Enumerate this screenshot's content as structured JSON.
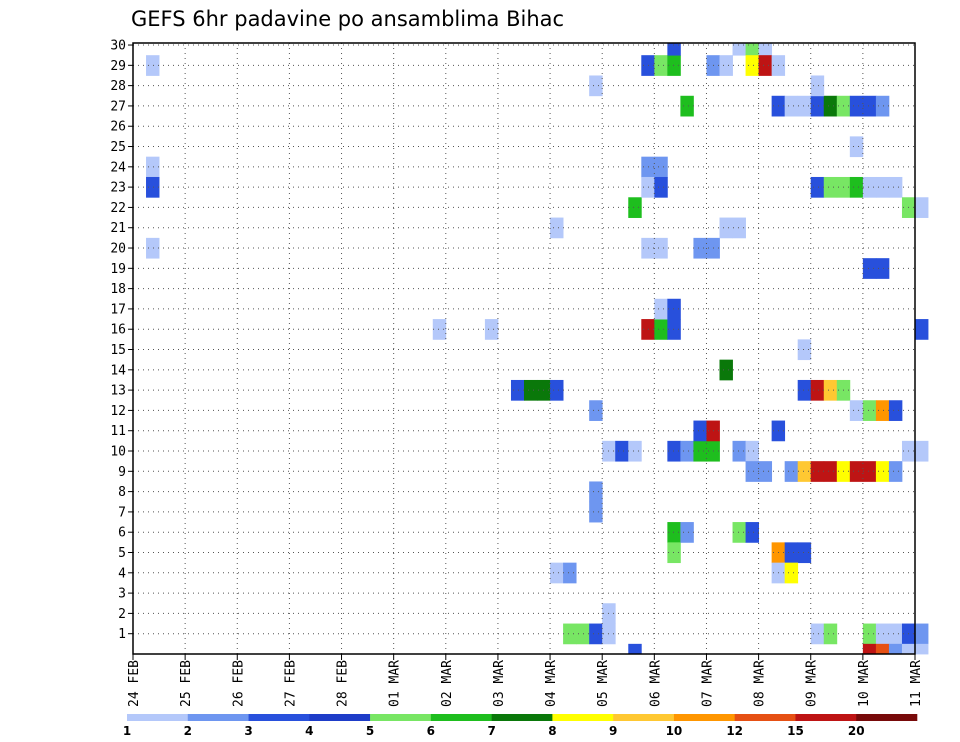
{
  "chart_data": {
    "type": "heatmap",
    "title": "GEFS 6hr padavine po ansamblima Bihac",
    "xlabel": "",
    "ylabel": "",
    "x_ticks": [
      "24 FEB",
      "25 FEB",
      "26 FEB",
      "27 FEB",
      "28 FEB",
      "01 MAR",
      "02 MAR",
      "03 MAR",
      "04 MAR",
      "05 MAR",
      "06 MAR",
      "07 MAR",
      "08 MAR",
      "09 MAR",
      "10 MAR",
      "11 MAR"
    ],
    "y_ticks": [
      "1",
      "2",
      "3",
      "4",
      "5",
      "6",
      "7",
      "8",
      "9",
      "10",
      "11",
      "12",
      "13",
      "14",
      "15",
      "16",
      "17",
      "18",
      "19",
      "20",
      "21",
      "22",
      "23",
      "24",
      "25",
      "26",
      "27",
      "28",
      "29",
      "30"
    ],
    "ylim": [
      0,
      30
    ],
    "x_steps_per_day": 4,
    "total_steps": 60,
    "grid": true,
    "legend": {
      "position": "bottom",
      "labels": [
        "1",
        "2",
        "3",
        "4",
        "5",
        "6",
        "7",
        "8",
        "9",
        "10",
        "12",
        "15",
        "20"
      ],
      "colors": [
        "#b4c8fa",
        "#6e96f0",
        "#2850dc",
        "#1e3cc8",
        "#78e664",
        "#1ebe1e",
        "#0a780a",
        "#ffff00",
        "#ffc832",
        "#ff9600",
        "#e65014",
        "#be1414",
        "#780a0a"
      ]
    },
    "cells": [
      [
        1,
        29,
        1
      ],
      [
        1,
        24,
        1
      ],
      [
        1,
        23,
        3
      ],
      [
        1,
        20,
        1
      ],
      [
        23,
        16,
        1
      ],
      [
        27,
        16,
        1
      ],
      [
        29,
        13,
        3
      ],
      [
        30,
        13,
        7
      ],
      [
        31,
        13,
        7
      ],
      [
        32,
        13,
        3
      ],
      [
        32,
        4,
        1
      ],
      [
        33,
        4,
        2
      ],
      [
        32,
        21,
        1
      ],
      [
        33,
        1,
        5
      ],
      [
        34,
        1,
        5
      ],
      [
        35,
        1,
        3
      ],
      [
        35,
        28,
        1
      ],
      [
        35,
        12,
        2
      ],
      [
        35,
        8,
        2
      ],
      [
        35,
        7,
        2
      ],
      [
        36,
        2,
        1
      ],
      [
        36,
        1,
        1
      ],
      [
        36,
        10,
        1
      ],
      [
        37,
        10,
        3
      ],
      [
        38,
        10,
        1
      ],
      [
        38,
        22,
        6
      ],
      [
        38,
        0,
        3
      ],
      [
        39,
        29,
        3
      ],
      [
        40,
        29,
        5
      ],
      [
        41,
        29,
        6
      ],
      [
        41,
        30,
        3
      ],
      [
        39,
        24,
        2
      ],
      [
        40,
        24,
        2
      ],
      [
        39,
        23,
        1
      ],
      [
        40,
        23,
        3
      ],
      [
        39,
        20,
        1
      ],
      [
        40,
        20,
        1
      ],
      [
        39,
        16,
        12
      ],
      [
        40,
        16,
        6
      ],
      [
        41,
        16,
        3
      ],
      [
        40,
        17,
        1
      ],
      [
        41,
        17,
        3
      ],
      [
        41,
        6,
        6
      ],
      [
        41,
        5,
        5
      ],
      [
        42,
        6,
        2
      ],
      [
        41,
        10,
        3
      ],
      [
        42,
        10,
        2
      ],
      [
        43,
        10,
        6
      ],
      [
        44,
        10,
        6
      ],
      [
        42,
        27,
        6
      ],
      [
        43,
        20,
        2
      ],
      [
        44,
        20,
        2
      ],
      [
        44,
        29,
        2
      ],
      [
        45,
        29,
        1
      ],
      [
        43,
        11,
        3
      ],
      [
        44,
        11,
        12
      ],
      [
        45,
        14,
        7
      ],
      [
        45,
        21,
        1
      ],
      [
        46,
        21,
        1
      ],
      [
        46,
        6,
        5
      ],
      [
        47,
        6,
        3
      ],
      [
        46,
        10,
        2
      ],
      [
        47,
        10,
        1
      ],
      [
        46,
        30,
        1
      ],
      [
        47,
        30,
        5
      ],
      [
        48,
        30,
        1
      ],
      [
        47,
        29,
        8
      ],
      [
        48,
        29,
        12
      ],
      [
        49,
        29,
        1
      ],
      [
        47,
        9,
        2
      ],
      [
        48,
        9,
        2
      ],
      [
        49,
        27,
        3
      ],
      [
        49,
        11,
        3
      ],
      [
        49,
        5,
        10
      ],
      [
        50,
        5,
        3
      ],
      [
        51,
        5,
        3
      ],
      [
        49,
        4,
        1
      ],
      [
        50,
        4,
        8
      ],
      [
        50,
        27,
        1
      ],
      [
        50,
        9,
        2
      ],
      [
        51,
        9,
        9
      ],
      [
        52,
        9,
        12
      ],
      [
        53,
        9,
        12
      ],
      [
        54,
        9,
        8
      ],
      [
        55,
        9,
        12
      ],
      [
        56,
        9,
        12
      ],
      [
        57,
        9,
        8
      ],
      [
        58,
        9,
        2
      ],
      [
        51,
        15,
        1
      ],
      [
        51,
        27,
        1
      ],
      [
        52,
        27,
        3
      ],
      [
        53,
        27,
        7
      ],
      [
        54,
        27,
        5
      ],
      [
        55,
        27,
        3
      ],
      [
        56,
        27,
        3
      ],
      [
        57,
        27,
        2
      ],
      [
        52,
        28,
        1
      ],
      [
        52,
        23,
        3
      ],
      [
        53,
        23,
        5
      ],
      [
        54,
        23,
        5
      ],
      [
        55,
        23,
        6
      ],
      [
        56,
        23,
        1
      ],
      [
        57,
        23,
        1
      ],
      [
        58,
        23,
        1
      ],
      [
        51,
        13,
        3
      ],
      [
        52,
        13,
        12
      ],
      [
        53,
        13,
        9
      ],
      [
        54,
        13,
        5
      ],
      [
        52,
        1,
        1
      ],
      [
        53,
        1,
        5
      ],
      [
        55,
        25,
        1
      ],
      [
        55,
        12,
        1
      ],
      [
        56,
        12,
        5
      ],
      [
        57,
        12,
        10
      ],
      [
        58,
        12,
        3
      ],
      [
        56,
        19,
        3
      ],
      [
        57,
        19,
        3
      ],
      [
        56,
        1,
        5
      ],
      [
        57,
        1,
        1
      ],
      [
        58,
        1,
        1
      ],
      [
        59,
        1,
        3
      ],
      [
        60,
        1,
        2
      ],
      [
        56,
        0,
        12
      ],
      [
        57,
        0,
        11
      ],
      [
        58,
        0,
        2
      ],
      [
        59,
        0,
        1
      ],
      [
        60,
        0,
        1
      ],
      [
        59,
        22,
        5
      ],
      [
        60,
        22,
        1
      ],
      [
        60,
        16,
        3
      ],
      [
        59,
        10,
        1
      ],
      [
        60,
        10,
        1
      ]
    ]
  }
}
